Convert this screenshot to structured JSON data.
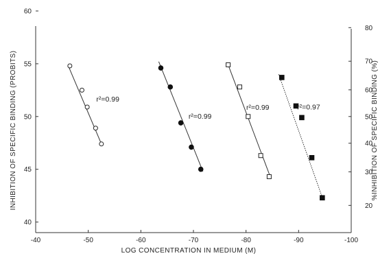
{
  "chart_data": {
    "type": "scatter",
    "title": "",
    "xlabel": "LOG CONCENTRATION IN MEDIUM (M)",
    "ylabel": "INHIBITION OF SPECIFIC BINDING (PROBITS)",
    "ylabel_right": "%INHIBITION OF SPECIFIC BINDING (%)",
    "xlim": [
      -4.0,
      -10.0
    ],
    "ylim": [
      3.9,
      6.0
    ],
    "x_ticks": [
      {
        "value": -4.0,
        "label": "-40"
      },
      {
        "value": -5.0,
        "label": "-50"
      },
      {
        "value": -6.0,
        "label": "-60"
      },
      {
        "value": -7.0,
        "label": "-70"
      },
      {
        "value": -8.0,
        "label": "-80"
      },
      {
        "value": -9.0,
        "label": "-90"
      },
      {
        "value": -10.0,
        "label": "-100"
      }
    ],
    "y_ticks": [
      {
        "value": 4.0,
        "label": "40"
      },
      {
        "value": 4.5,
        "label": "45"
      },
      {
        "value": 5.0,
        "label": "50"
      },
      {
        "value": 5.5,
        "label": "55"
      },
      {
        "value": 6.0,
        "label": "60"
      }
    ],
    "y_right_ticks": [
      {
        "value": 4.158,
        "label": "20"
      },
      {
        "value": 4.476,
        "label": "30"
      },
      {
        "value": 4.747,
        "label": "40"
      },
      {
        "value": 5.0,
        "label": "50"
      },
      {
        "value": 5.253,
        "label": "60"
      },
      {
        "value": 5.524,
        "label": "70"
      },
      {
        "value": 5.842,
        "label": "80"
      }
    ],
    "series": [
      {
        "marker": "open-circle",
        "r2_label": "r²=0.99",
        "x": [
          -4.65,
          -4.88,
          -4.98,
          -5.14,
          -5.25
        ],
        "y": [
          5.48,
          5.25,
          5.09,
          4.89,
          4.74
        ],
        "fit": {
          "x": [
            -4.62,
            -5.25
          ],
          "y": [
            5.48,
            4.74
          ]
        }
      },
      {
        "marker": "filled-circle",
        "r2_label": "r²=0.99",
        "x": [
          -6.38,
          -6.56,
          -6.76,
          -6.96,
          -7.14
        ],
        "y": [
          5.46,
          5.28,
          4.94,
          4.71,
          4.5
        ],
        "fit": {
          "x": [
            -6.34,
            -7.18
          ],
          "y": [
            5.52,
            4.48
          ]
        }
      },
      {
        "marker": "open-square",
        "r2_label": "r²=0.99",
        "x": [
          -7.66,
          -7.88,
          -8.04,
          -8.28,
          -8.44
        ],
        "y": [
          5.49,
          5.28,
          5.0,
          4.63,
          4.43
        ],
        "fit": {
          "x": [
            -7.66,
            -8.46
          ],
          "y": [
            5.49,
            4.43
          ]
        }
      },
      {
        "marker": "filled-square",
        "r2_label": "r²=0.97",
        "x": [
          -8.68,
          -8.95,
          -9.06,
          -9.25,
          -9.45
        ],
        "y": [
          5.37,
          5.1,
          4.99,
          4.61,
          4.23
        ],
        "fit": {
          "x": [
            -8.62,
            -9.46
          ],
          "y": [
            5.4,
            4.22
          ]
        }
      }
    ],
    "grid": false,
    "legend": "none"
  }
}
